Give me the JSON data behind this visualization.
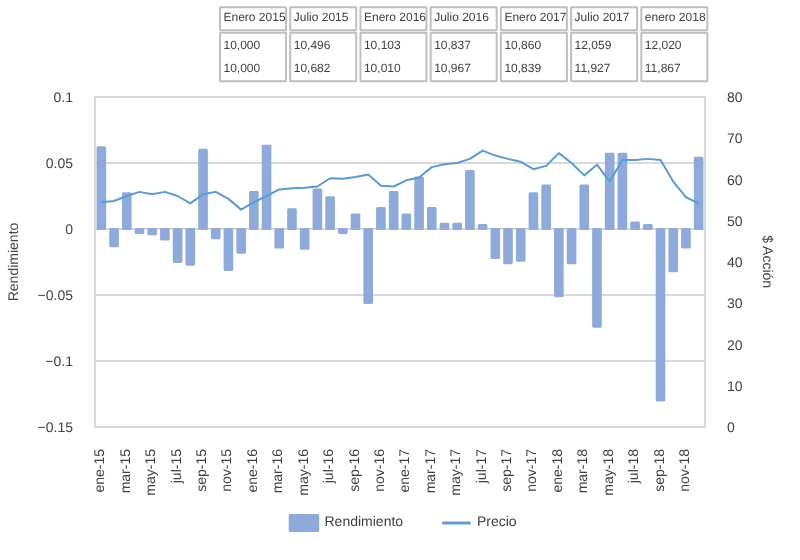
{
  "chart_data": {
    "type": "bar",
    "categories": [
      "ene-15",
      null,
      "mar-15",
      null,
      "may-15",
      null,
      "jul-15",
      null,
      "sep-15",
      null,
      "nov-15",
      null,
      "ene-16",
      null,
      "mar-16",
      null,
      "may-16",
      null,
      "jul-16",
      null,
      "sep-16",
      null,
      "nov-16",
      null,
      "ene-17",
      null,
      "mar-17",
      null,
      "may-17",
      null,
      "jul-17",
      null,
      "sep-17",
      null,
      "nov-17",
      null,
      "ene-18",
      null,
      "mar-18",
      null,
      "may-18",
      null,
      "jul-18",
      null,
      "sep-18",
      null,
      "nov-18",
      null
    ],
    "series": [
      {
        "name": "Rendimiento",
        "color": "#8eaadb",
        "values": [
          0.062,
          -0.013,
          0.027,
          -0.003,
          -0.004,
          -0.008,
          -0.025,
          -0.027,
          0.06,
          -0.007,
          -0.031,
          -0.018,
          0.028,
          0.063,
          -0.014,
          0.015,
          -0.015,
          0.03,
          0.024,
          -0.003,
          0.011,
          -0.056,
          0.016,
          0.028,
          0.011,
          0.039,
          0.016,
          0.004,
          0.004,
          0.044,
          0.003,
          -0.022,
          -0.026,
          -0.024,
          0.027,
          0.033,
          -0.051,
          -0.026,
          0.033,
          -0.074,
          0.057,
          0.057,
          0.005,
          0.003,
          -0.13,
          -0.032,
          -0.014,
          0.054
        ]
      },
      {
        "name": "Precio",
        "type": "line",
        "axis": "y2",
        "color": "#5b9bd5",
        "values": [
          54.5,
          54.8,
          56,
          57,
          56.4,
          57,
          56,
          54.2,
          56.4,
          57,
          55.3,
          52.7,
          54.5,
          56,
          57.6,
          57.9,
          58,
          58.3,
          60.3,
          60.2,
          60.6,
          61.2,
          58.5,
          58.3,
          59.8,
          60.5,
          63,
          63.7,
          64,
          65,
          67,
          65.8,
          65,
          64.3,
          62.5,
          63.3,
          66.4,
          64,
          61,
          63.6,
          59.5,
          64.7,
          64.7,
          65,
          64.7,
          59.5,
          55.7,
          54.2
        ]
      }
    ],
    "ylim": [
      -0.15,
      0.1
    ],
    "yticks": [
      -0.15,
      -0.1,
      -0.05,
      0,
      0.05,
      0.1
    ],
    "y2lim": [
      0,
      80
    ],
    "y2ticks": [
      0,
      10,
      20,
      30,
      40,
      50,
      60,
      70,
      80
    ],
    "ylabel": "Rendimiento",
    "y2label": "$ Acción",
    "grid": "y",
    "legend": "bottom",
    "annotations": [
      "Enero 2015",
      "10,000",
      "10,000",
      "Julio 2015",
      "10,496",
      "10,682",
      "Enero 2016",
      "10,103",
      "10,010",
      "Julio 2016",
      "10,837",
      "10,967",
      "Enero 2017",
      "10,860",
      "10,839",
      "Julio 2017",
      "12,059",
      "11,927",
      "enero 2018",
      "12,020",
      "11,867"
    ]
  }
}
